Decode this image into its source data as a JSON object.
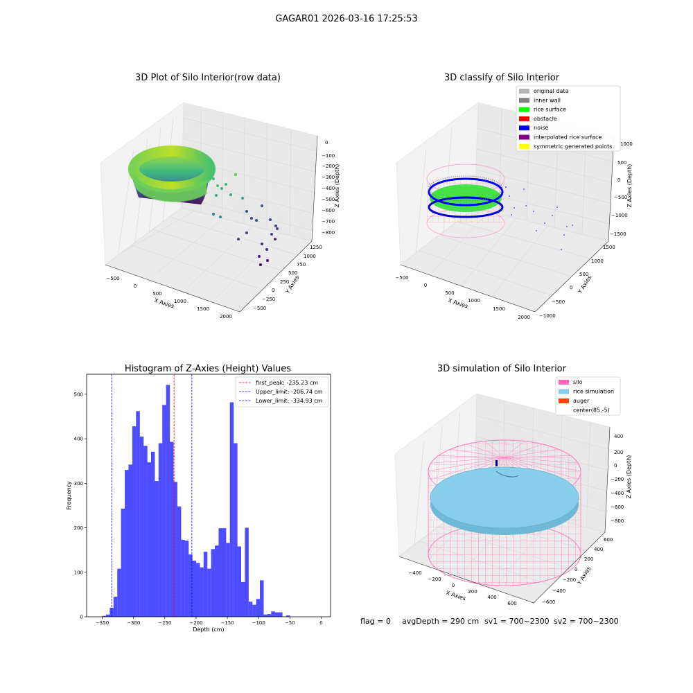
{
  "figure": {
    "suptitle": "GAGAR01 2026-03-16 17:25:53",
    "footer": {
      "flag": "flag = 0",
      "avg": "avgDepth = 290 cm",
      "sv1": "sv1 = 700~2300",
      "sv2": "sv2 = 700~2300"
    }
  },
  "chart_data": [
    {
      "type": "scatter3d",
      "title": "3D Plot of Silo Interior(row data)",
      "xlabel": "X Axies",
      "ylabel": "Y Axies",
      "zlabel": "Z Axies (Depth)",
      "x_ticks": [
        "−500",
        "0",
        "500",
        "1000",
        "1500",
        "2000"
      ],
      "y_ticks": [
        "−500",
        "−250",
        "0",
        "250",
        "500",
        "750",
        "1000",
        "1250"
      ],
      "z_ticks": [
        "0",
        "−100",
        "−200",
        "−300",
        "−400",
        "−500",
        "−600",
        "−700",
        "−800"
      ],
      "colormap": "viridis",
      "xlim": [
        -600,
        2100
      ],
      "ylim": [
        -600,
        1300
      ],
      "zlim": [
        -850,
        0
      ]
    },
    {
      "type": "scatter3d",
      "title": "3D classify of Silo Interior",
      "xlabel": "X Axies",
      "ylabel": "Y Axies",
      "zlabel": "Z Axies (Depth)",
      "x_ticks": [
        "−500",
        "0",
        "500",
        "1000",
        "1500",
        "2000"
      ],
      "y_ticks": [
        "−1000",
        "−500",
        "0",
        "500",
        "1000",
        "1500"
      ],
      "z_ticks": [
        "1000",
        "500",
        "0",
        "−500",
        "−1000",
        "−1500"
      ],
      "legend": [
        {
          "label": "original data",
          "color": "#b3b3b3"
        },
        {
          "label": "inner wall",
          "color": "#808080"
        },
        {
          "label": "rice surface",
          "color": "#00ff00"
        },
        {
          "label": "obstacle",
          "color": "#ff0000"
        },
        {
          "label": "noise",
          "color": "#0000ff"
        },
        {
          "label": "interpolated rice surface",
          "color": "#800080"
        },
        {
          "label": "symmetric generated points",
          "color": "#ffff00"
        }
      ],
      "legend_loc": "upper right"
    },
    {
      "type": "bar",
      "title": "Histogram of Z-Axies (Height) Values",
      "xlabel": "Depth (cm)",
      "ylabel": "Frequency",
      "bar_color": "#4d4dff",
      "bin_start": -356,
      "bin_width": 6,
      "values": [
        0,
        2,
        5,
        20,
        45,
        108,
        243,
        330,
        342,
        428,
        462,
        405,
        384,
        347,
        371,
        305,
        390,
        476,
        521,
        393,
        303,
        248,
        173,
        171,
        140,
        126,
        121,
        111,
        146,
        108,
        152,
        160,
        199,
        199,
        166,
        482,
        390,
        158,
        78,
        200,
        34,
        27,
        40,
        82,
        5,
        6,
        12,
        10,
        10,
        0,
        3,
        0
      ],
      "xlim": [
        -375,
        15
      ],
      "ylim": [
        0,
        545
      ],
      "x_ticks": [
        -350,
        -300,
        -250,
        -200,
        -150,
        -100,
        -50,
        0
      ],
      "x_tick_labels": [
        "−350",
        "−300",
        "−250",
        "−200",
        "−150",
        "−100",
        "−50",
        "0"
      ],
      "y_ticks": [
        0,
        100,
        200,
        300,
        400,
        500
      ],
      "y_tick_labels": [
        "0",
        "100",
        "200",
        "300",
        "400",
        "500"
      ],
      "vlines": [
        {
          "x": -235.23,
          "color": "#ff0000",
          "label": "first_peak: -235.23 cm"
        },
        {
          "x": -206.74,
          "color": "#0000ff",
          "label": "Upper_limit: -206.74 cm"
        },
        {
          "x": -334.93,
          "color": "#0000ff",
          "label": "Lower_limit: -334.93 cm"
        }
      ],
      "legend_loc": "upper right"
    },
    {
      "type": "surface3d",
      "title": "3D simulation of Silo Interior",
      "xlabel": "X Axies",
      "ylabel": "Y Axies",
      "zlabel": "Z Axies (Depth)",
      "x_ticks": [
        "−400",
        "−200",
        "0",
        "200",
        "400",
        "600"
      ],
      "y_ticks": [
        "600",
        "400",
        "200",
        "0",
        "−200",
        "−400",
        "−600"
      ],
      "z_ticks": [
        "400",
        "200",
        "0",
        "−200",
        "−400",
        "−600",
        "−800"
      ],
      "legend": [
        {
          "label": "silo",
          "color": "#ff69b4"
        },
        {
          "label": "rice simulation",
          "color": "#87ceeb"
        },
        {
          "label": "auger",
          "color": "#ff4500"
        },
        {
          "label": "center(85,-5)",
          "color": "#ffffff"
        }
      ],
      "legend_loc": "upper right"
    }
  ]
}
